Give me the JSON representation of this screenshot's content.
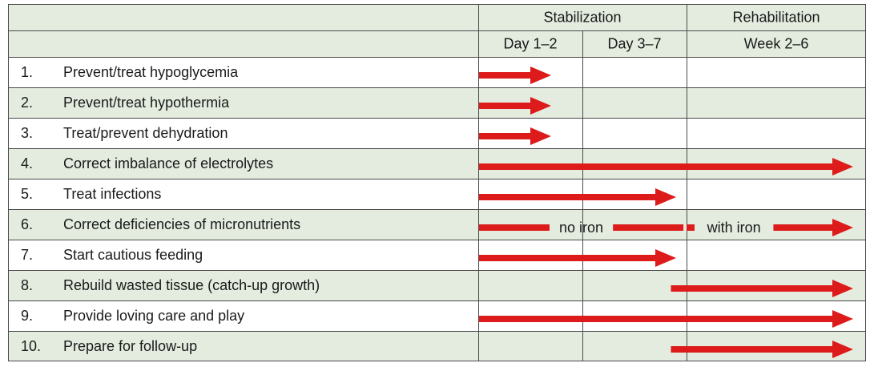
{
  "colors": {
    "green": "#e3ecdf",
    "white": "#ffffff",
    "grid": "#4a4a4a",
    "arrow": "#dd1b1b",
    "text": "#1a1a1a"
  },
  "header": {
    "groups": [
      {
        "label": "Stabilization",
        "span": [
          0,
          1
        ]
      },
      {
        "label": "Rehabilitation",
        "span": [
          2,
          2
        ]
      }
    ],
    "periods": [
      "Day 1–2",
      "Day 3–7",
      "Week 2–6"
    ]
  },
  "chart_data": {
    "type": "table",
    "rows": [
      {
        "num": "1.",
        "task": "Prevent/treat hypoglycemia",
        "bands": [
          {
            "start": 0.0,
            "end": 0.7
          }
        ]
      },
      {
        "num": "2.",
        "task": "Prevent/treat hypothermia",
        "bands": [
          {
            "start": 0.0,
            "end": 0.7
          }
        ]
      },
      {
        "num": "3.",
        "task": "Treat/prevent dehydration",
        "bands": [
          {
            "start": 0.0,
            "end": 0.7
          }
        ]
      },
      {
        "num": "4.",
        "task": "Correct imbalance of electrolytes",
        "bands": [
          {
            "start": 0.0,
            "end": 3.0
          }
        ]
      },
      {
        "num": "5.",
        "task": "Treat infections",
        "bands": [
          {
            "start": 0.0,
            "end": 1.9
          }
        ]
      },
      {
        "num": "6.",
        "task": "Correct deficiencies of micronutrients",
        "bands": [
          {
            "start": 0.0,
            "end": 1.97,
            "label": "no iron"
          },
          {
            "start": 2.0,
            "end": 3.0,
            "label": "with iron"
          }
        ]
      },
      {
        "num": "7.",
        "task": "Start cautious feeding",
        "bands": [
          {
            "start": 0.0,
            "end": 1.9
          }
        ]
      },
      {
        "num": "8.",
        "task": "Rebuild wasted tissue (catch-up growth)",
        "bands": [
          {
            "start": 1.85,
            "end": 3.0
          }
        ]
      },
      {
        "num": "9.",
        "task": "Provide loving care and play",
        "bands": [
          {
            "start": 0.0,
            "end": 3.0
          }
        ]
      },
      {
        "num": "10.",
        "task": "Prepare for follow-up",
        "bands": [
          {
            "start": 1.85,
            "end": 3.0
          }
        ]
      }
    ]
  }
}
